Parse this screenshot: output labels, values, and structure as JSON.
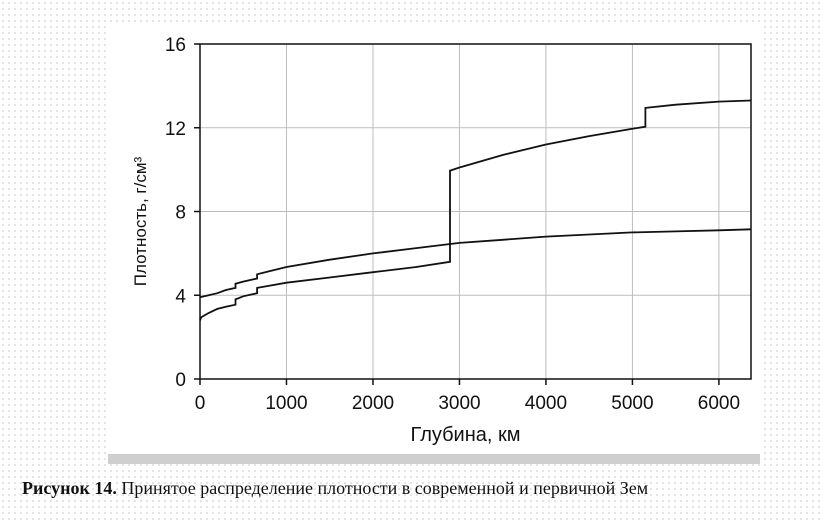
{
  "caption": {
    "prefix": "Рисунок 14.",
    "text": " Принятое распределение плотности в современной и первичной Зем"
  },
  "chart_data": {
    "type": "line",
    "title": "",
    "xlabel": "Глубина, км",
    "ylabel": "Плотность, г/см³",
    "xlim": [
      0,
      6371
    ],
    "ylim": [
      0,
      16
    ],
    "xticks": [
      0,
      1000,
      2000,
      3000,
      4000,
      5000,
      6000
    ],
    "yticks": [
      0,
      4,
      8,
      12,
      16
    ],
    "grid": true,
    "legend": "none",
    "series": [
      {
        "points": [
          [
            0,
            2.8
          ],
          [
            15,
            2.95
          ],
          [
            100,
            3.15
          ],
          [
            200,
            3.35
          ],
          [
            300,
            3.45
          ],
          [
            410,
            3.55
          ],
          [
            410,
            3.8
          ],
          [
            500,
            3.95
          ],
          [
            660,
            4.1
          ],
          [
            660,
            4.35
          ],
          [
            800,
            4.45
          ],
          [
            1000,
            4.6
          ],
          [
            1500,
            4.85
          ],
          [
            2000,
            5.1
          ],
          [
            2500,
            5.35
          ],
          [
            2891,
            5.6
          ],
          [
            2891,
            9.95
          ],
          [
            3000,
            10.1
          ],
          [
            3500,
            10.7
          ],
          [
            4000,
            11.2
          ],
          [
            4500,
            11.6
          ],
          [
            5000,
            11.95
          ],
          [
            5150,
            12.05
          ],
          [
            5150,
            12.95
          ],
          [
            5500,
            13.1
          ],
          [
            6000,
            13.25
          ],
          [
            6371,
            13.3
          ]
        ]
      },
      {
        "points": [
          [
            0,
            3.9
          ],
          [
            100,
            4.0
          ],
          [
            200,
            4.1
          ],
          [
            300,
            4.25
          ],
          [
            410,
            4.35
          ],
          [
            410,
            4.55
          ],
          [
            500,
            4.65
          ],
          [
            660,
            4.8
          ],
          [
            660,
            5.0
          ],
          [
            800,
            5.15
          ],
          [
            1000,
            5.35
          ],
          [
            1500,
            5.7
          ],
          [
            2000,
            6.0
          ],
          [
            2500,
            6.25
          ],
          [
            3000,
            6.5
          ],
          [
            3500,
            6.65
          ],
          [
            4000,
            6.8
          ],
          [
            4500,
            6.9
          ],
          [
            5000,
            7.0
          ],
          [
            5500,
            7.05
          ],
          [
            6000,
            7.1
          ],
          [
            6371,
            7.15
          ]
        ]
      }
    ]
  }
}
